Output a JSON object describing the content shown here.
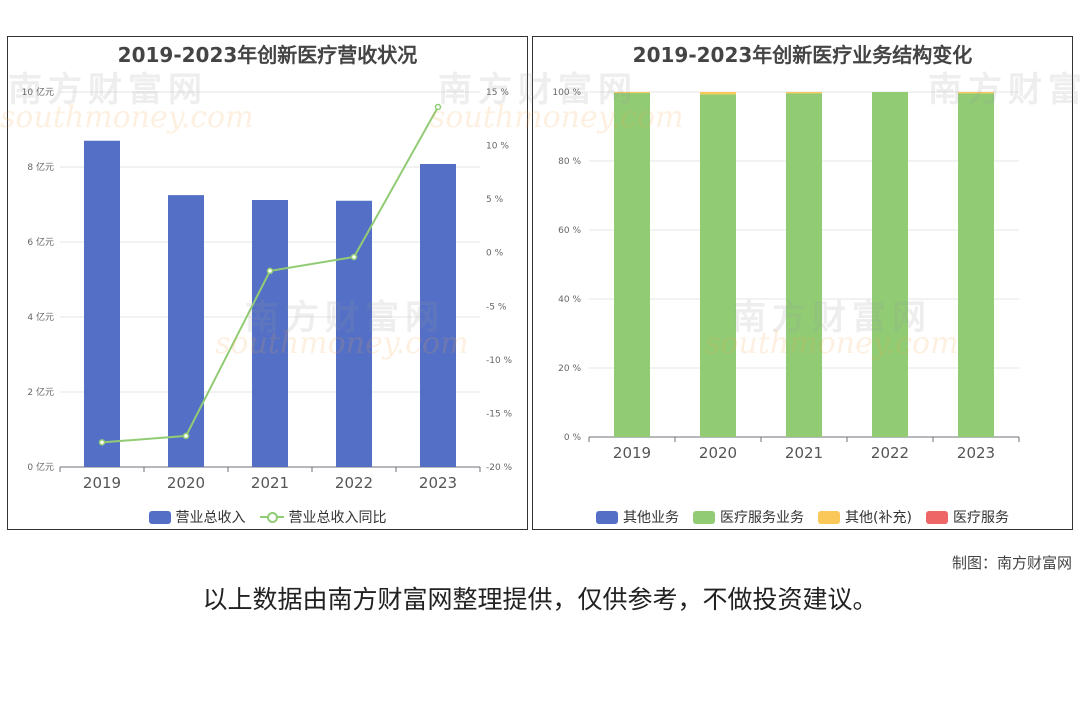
{
  "watermark": {
    "cn": "南方财富网",
    "en": "southmoney.com"
  },
  "credit": "制图：南方财富网",
  "disclaimer": "以上数据由南方财富网整理提供，仅供参考，不做投资建议。",
  "colors": {
    "blue": "#5470c6",
    "green": "#91cc75",
    "yellow": "#fac858",
    "red": "#ee6666"
  },
  "chart_data": [
    {
      "type": "bar",
      "title": "2019-2023年创新医疗营收状况",
      "categories": [
        "2019",
        "2020",
        "2021",
        "2022",
        "2023"
      ],
      "y_left": {
        "ticks": [
          "0 亿元",
          "2 亿元",
          "4 亿元",
          "6 亿元",
          "8 亿元",
          "10 亿元"
        ],
        "ylim": [
          0,
          10
        ]
      },
      "y_right": {
        "ticks": [
          "-20 %",
          "-15 %",
          "-10 %",
          "-5 %",
          "0 %",
          "5 %",
          "10 %",
          "15 %"
        ],
        "ylim": [
          -20,
          15
        ]
      },
      "series": [
        {
          "name": "营业总收入",
          "type": "bar",
          "axis": "left",
          "color": "#5470c6",
          "values": [
            8.7,
            7.25,
            7.12,
            7.1,
            8.08
          ]
        },
        {
          "name": "营业总收入同比",
          "type": "line",
          "axis": "right",
          "color": "#91cc75",
          "values": [
            -17.7,
            -17.1,
            -1.7,
            -0.4,
            13.6
          ]
        }
      ],
      "legend_position": "bottom",
      "grid": true
    },
    {
      "type": "bar",
      "stacked": true,
      "title": "2019-2023年创新医疗业务结构变化",
      "categories": [
        "2019",
        "2020",
        "2021",
        "2022",
        "2023"
      ],
      "y": {
        "ticks": [
          "0 %",
          "20 %",
          "40 %",
          "60 %",
          "80 %",
          "100 %"
        ],
        "ylim": [
          0,
          100
        ]
      },
      "series": [
        {
          "name": "其他业务",
          "color": "#5470c6",
          "values": [
            0,
            0,
            0,
            0,
            0
          ]
        },
        {
          "name": "医疗服务业务",
          "color": "#91cc75",
          "values": [
            99.7,
            99.3,
            99.6,
            100,
            99.6
          ]
        },
        {
          "name": "其他(补充)",
          "color": "#fac858",
          "values": [
            0.3,
            0.7,
            0.4,
            0,
            0.4
          ]
        },
        {
          "name": "医疗服务",
          "color": "#ee6666",
          "values": [
            0,
            0,
            0,
            0,
            0
          ]
        }
      ],
      "legend_position": "bottom",
      "grid": true
    }
  ]
}
